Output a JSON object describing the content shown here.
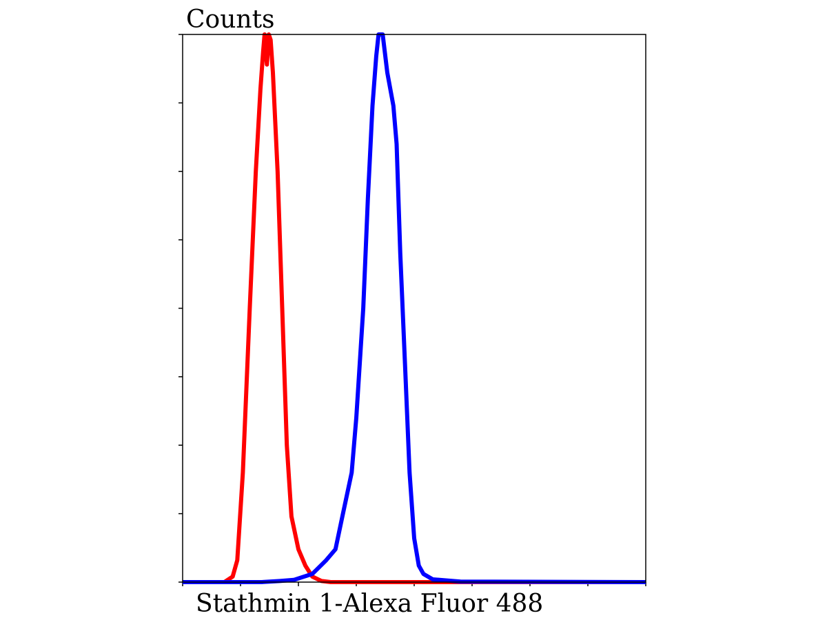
{
  "chart_data": {
    "type": "line",
    "ylabel": "Counts",
    "xlabel": "Stathmin 1-Alexa Fluor 488",
    "xlim": [
      0,
      1
    ],
    "ylim": [
      0,
      1
    ],
    "x_tick_count": 8,
    "y_tick_count": 8,
    "grid": false,
    "legend": "none",
    "series": [
      {
        "color": "#ff0000",
        "points": [
          [
            0.0,
            0.0
          ],
          [
            0.09,
            0.0
          ],
          [
            0.108,
            0.01
          ],
          [
            0.118,
            0.04
          ],
          [
            0.13,
            0.2
          ],
          [
            0.145,
            0.5
          ],
          [
            0.158,
            0.75
          ],
          [
            0.168,
            0.9
          ],
          [
            0.174,
            0.97
          ],
          [
            0.177,
            1.0
          ],
          [
            0.182,
            0.945
          ],
          [
            0.186,
            1.0
          ],
          [
            0.19,
            0.99
          ],
          [
            0.195,
            0.93
          ],
          [
            0.205,
            0.75
          ],
          [
            0.215,
            0.5
          ],
          [
            0.225,
            0.25
          ],
          [
            0.235,
            0.12
          ],
          [
            0.25,
            0.06
          ],
          [
            0.265,
            0.03
          ],
          [
            0.28,
            0.01
          ],
          [
            0.3,
            0.002
          ],
          [
            0.32,
            0.0
          ],
          [
            0.54,
            0.0
          ],
          [
            1.0,
            0.0
          ]
        ]
      },
      {
        "color": "#0000ff",
        "points": [
          [
            0.0,
            0.0
          ],
          [
            0.17,
            0.0
          ],
          [
            0.21,
            0.002
          ],
          [
            0.24,
            0.004
          ],
          [
            0.28,
            0.015
          ],
          [
            0.31,
            0.04
          ],
          [
            0.33,
            0.06
          ],
          [
            0.345,
            0.12
          ],
          [
            0.365,
            0.2
          ],
          [
            0.375,
            0.3
          ],
          [
            0.39,
            0.5
          ],
          [
            0.4,
            0.7
          ],
          [
            0.41,
            0.87
          ],
          [
            0.418,
            0.96
          ],
          [
            0.423,
            1.0
          ],
          [
            0.432,
            1.0
          ],
          [
            0.442,
            0.93
          ],
          [
            0.455,
            0.87
          ],
          [
            0.462,
            0.8
          ],
          [
            0.47,
            0.6
          ],
          [
            0.48,
            0.4
          ],
          [
            0.49,
            0.2
          ],
          [
            0.5,
            0.08
          ],
          [
            0.51,
            0.03
          ],
          [
            0.52,
            0.015
          ],
          [
            0.54,
            0.005
          ],
          [
            0.6,
            0.001
          ],
          [
            1.0,
            0.0
          ]
        ]
      }
    ]
  }
}
